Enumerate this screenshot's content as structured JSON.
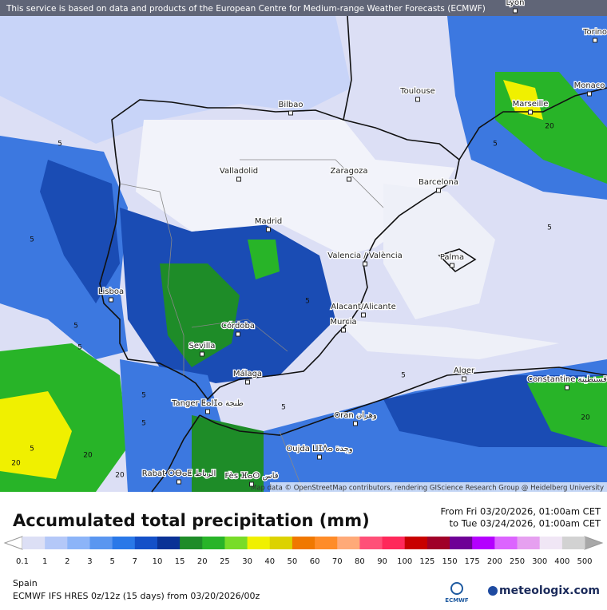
{
  "banner": "This service is based on data and products of the European Centre for Medium-range Weather Forecasts (ECMWF)",
  "attribution": "Map data © OpenStreetMap contributors, rendering GIScience Research Group @ Heidelberg University",
  "cities": [
    "Lyon",
    "Torino",
    "Monaco",
    "Toulouse",
    "Marseille",
    "Bilbao",
    "Valladolid",
    "Zaragoza",
    "Barcelona",
    "Madrid",
    "Valencia / València",
    "Palma",
    "Lisboa",
    "Alacant/Alicante",
    "Murcia",
    "Córdoba",
    "Sevilla",
    "Málaga",
    "Alger",
    "Constantine قسنطينة",
    "Tanger ⵟⴰⵏⵊⴰ طنجة",
    "Oran وهران",
    "Oujda ⵡⵊⴷⴰ وجدة",
    "Rabat ⵔⴱⴰⵟ الرباط",
    "Fès ⴼⴰⵙ فاس"
  ],
  "contour_labels": [
    5,
    5,
    5,
    5,
    5,
    5,
    5,
    5,
    5,
    5,
    5,
    5,
    20,
    20,
    20,
    20,
    20
  ],
  "legend": {
    "title": "Accumulated total precipitation (mm)",
    "period_from": "From Fri 03/20/2026, 01:00am CET",
    "period_to": "to Tue 03/24/2026, 01:00am CET",
    "labels": [
      0.1,
      1,
      2,
      3,
      5,
      7,
      10,
      15,
      20,
      25,
      30,
      40,
      50,
      60,
      70,
      80,
      90,
      100,
      125,
      150,
      175,
      200,
      250,
      300,
      400,
      500
    ],
    "under_color": "#ffffff",
    "over_color": "#a8a8a8",
    "colors": [
      "#dcdff5",
      "#b4c8f8",
      "#8cb4f8",
      "#5a96f0",
      "#2a78e8",
      "#1450c8",
      "#0a3296",
      "#1e8c28",
      "#28b428",
      "#78dc28",
      "#f0f000",
      "#dcd200",
      "#f07800",
      "#ff8c28",
      "#ffaa78",
      "#ff5078",
      "#ff285a",
      "#c80000",
      "#a00028",
      "#6e0096",
      "#b400ff",
      "#dc64ff",
      "#e6a0f0",
      "#f0e6f5",
      "#d2d2d2"
    ]
  },
  "footer": {
    "region": "Spain",
    "model": "ECMWF IFS HRES 0z/12z (15 days) from  03/20/2026/00z",
    "brand_ecmwf": "ECMWF",
    "brand": "meteologix.com"
  }
}
